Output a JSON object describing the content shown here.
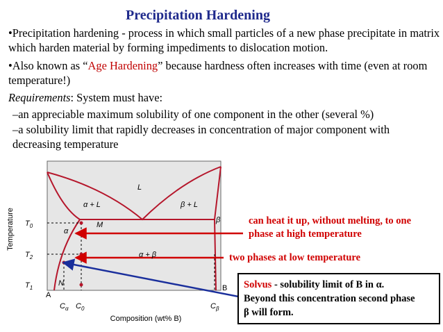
{
  "title": "Precipitation Hardening",
  "bullet_1": "•Precipitation hardening - process in which small particles of a new phase precipitate in matrix which harden material by forming impediments to dislocation motion.",
  "bullet_2": {
    "before": "•Also known as “",
    "highlight": "Age Hardening",
    "after": "” because hardness often increases with time (even at room temperature!)"
  },
  "requirements": {
    "label": "Requirements",
    "rest": ": System must have:"
  },
  "items": [
    "–an appreciable maximum solubility of one component in the other (several %)",
    "–a solubility limit that rapidly decreases in concentration of major component with decreasing temperature"
  ],
  "diagram": {
    "y_axis_label": "Temperature",
    "x_axis_label": "Composition (wt% B)",
    "regions": {
      "liquid": "L",
      "alpha_liquid": "α + L",
      "beta_liquid": "β + L",
      "alpha": "α",
      "point_m": "M",
      "beta": "β",
      "alpha_beta": "α + β",
      "point_n": "N",
      "end_a": "A",
      "end_b": "B"
    },
    "temperatures": [
      {
        "main": "T",
        "sub": "0"
      },
      {
        "main": "T",
        "sub": "2"
      },
      {
        "main": "T",
        "sub": "1"
      }
    ],
    "compositions": [
      {
        "main": "C",
        "sub": "α"
      },
      {
        "main": "C",
        "sub": "0"
      },
      {
        "main": "C",
        "sub": "β"
      }
    ]
  },
  "annotations": {
    "heat": [
      "can heat it up, without melting, to one",
      "phase at high temperature"
    ],
    "two_phases": "two phases at low temperature",
    "solvus": {
      "term": "Solvus",
      "line_1": " - solubility limit of B in α.",
      "line_2": "Beyond this concentration second phase",
      "line_3": "β will form."
    }
  }
}
